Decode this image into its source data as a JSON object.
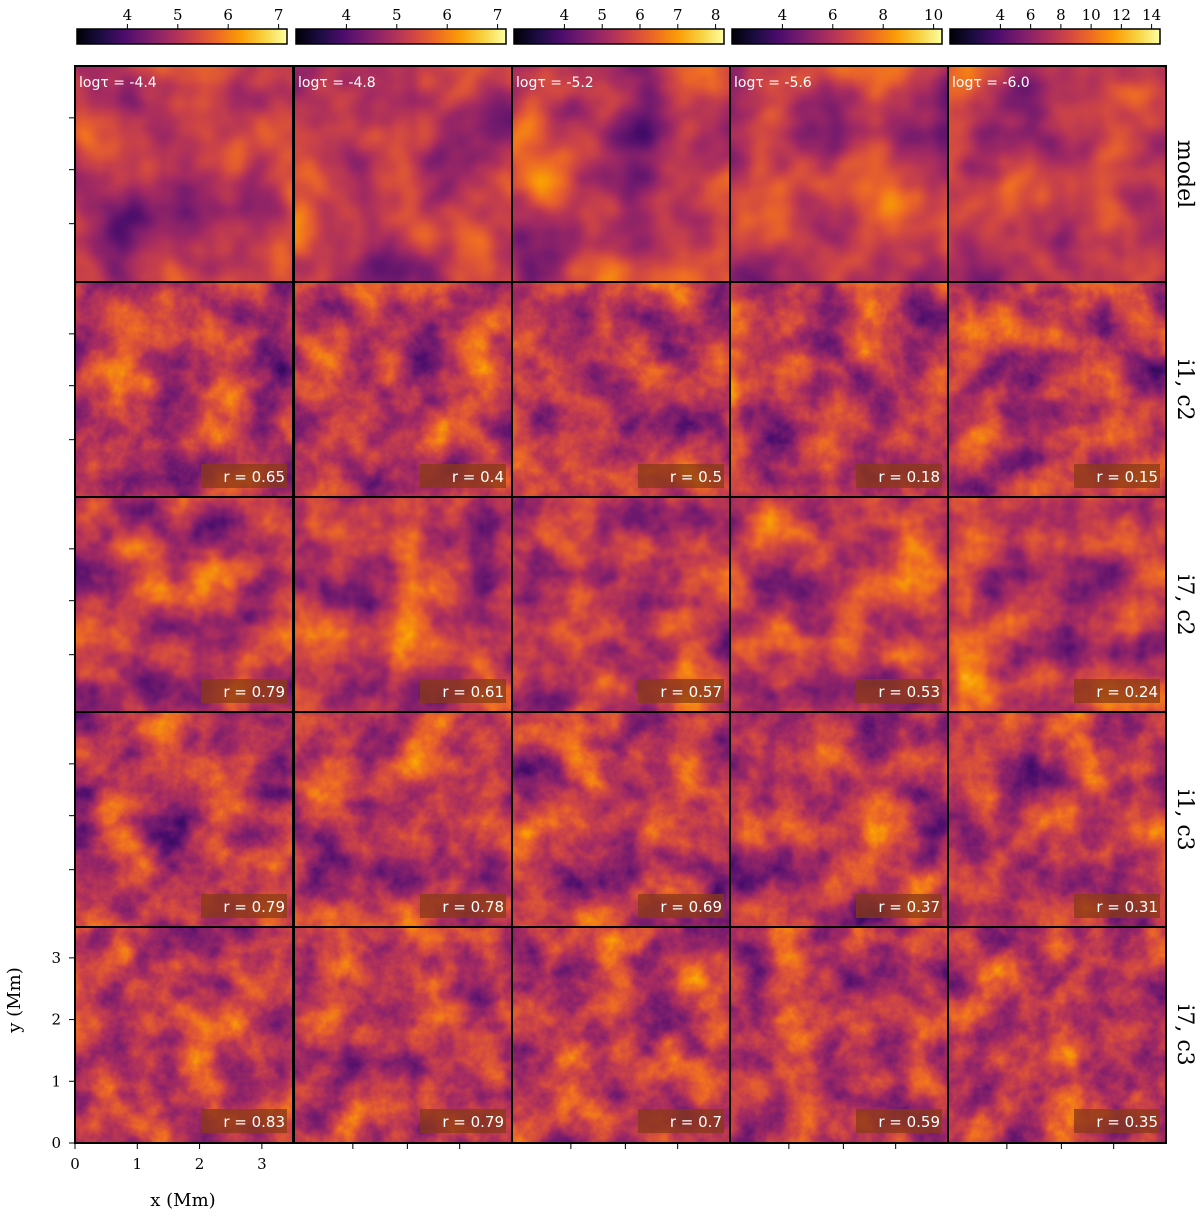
{
  "chart_data": {
    "type": "heatmap",
    "colormap": "inferno",
    "colors": {
      "inferno": [
        "#000004",
        "#1b0c41",
        "#4a0c6b",
        "#781c6d",
        "#a52c60",
        "#cf4446",
        "#ed6925",
        "#fb9b06",
        "#f7d13d",
        "#fcffa4"
      ],
      "panel_border": "#000000",
      "r_label_box": "#8a3a16"
    },
    "column_titles": [
      "logτ = -4.4",
      "logτ = -4.8",
      "logτ = -5.2",
      "logτ = -5.6",
      "logτ = -6.0"
    ],
    "row_labels": [
      "model",
      "i1, c2",
      "i7, c2",
      "i1, c3",
      "i7, c3"
    ],
    "colorbars": [
      {
        "ticks": [
          "4",
          "5",
          "6",
          "7"
        ]
      },
      {
        "ticks": [
          "4",
          "5",
          "6",
          "7"
        ]
      },
      {
        "ticks": [
          "4",
          "5",
          "6",
          "7",
          "8"
        ]
      },
      {
        "ticks": [
          "4",
          "6",
          "8",
          "10"
        ]
      },
      {
        "ticks": [
          "4",
          "6",
          "8",
          "10",
          "12",
          "14"
        ]
      }
    ],
    "correlations": {
      "i1, c2": [
        "0.65",
        "0.4",
        "0.5",
        "0.18",
        "0.15"
      ],
      "i7, c2": [
        "0.79",
        "0.61",
        "0.57",
        "0.53",
        "0.24"
      ],
      "i1, c3": [
        "0.79",
        "0.78",
        "0.69",
        "0.37",
        "0.31"
      ],
      "i7, c3": [
        "0.83",
        "0.79",
        "0.7",
        "0.59",
        "0.35"
      ]
    },
    "r_prefix": "r = ",
    "xlabel": "x (Mm)",
    "ylabel": "y (Mm)",
    "x_ticks": [
      "0",
      "1",
      "2",
      "3"
    ],
    "y_ticks": [
      "0",
      "1",
      "2",
      "3"
    ],
    "xlim": [
      0,
      3.5
    ],
    "ylim": [
      0,
      3.5
    ]
  }
}
